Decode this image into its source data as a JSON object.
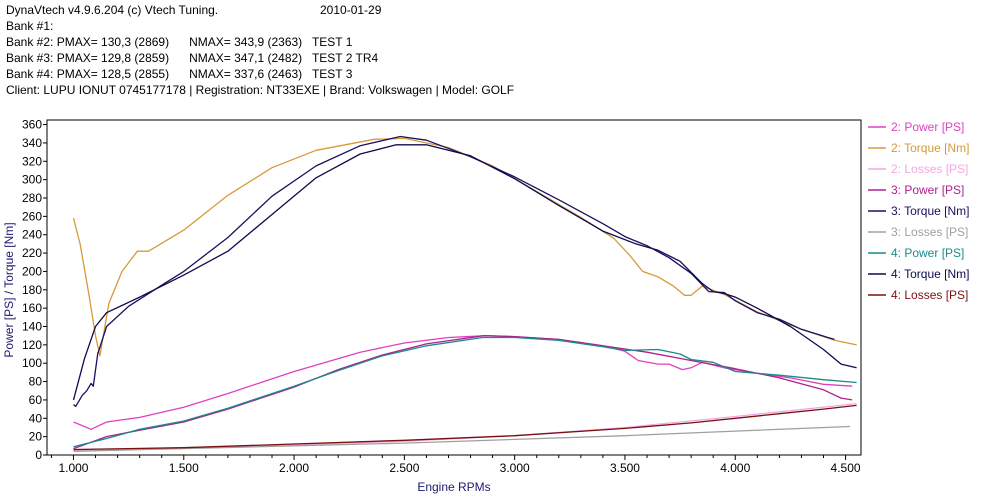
{
  "header": {
    "title": "DynaVtech v4.9.6.204 (c) Vtech Tuning.",
    "date": "2010-01-29",
    "banks": [
      "Bank #1:",
      "Bank #2: PMAX= 130,3 (2869)      NMAX= 343,9 (2363)   TEST 1",
      "Bank #3: PMAX= 129,8 (2859)      NMAX= 347,1 (2482)   TEST 2 TR4",
      "Bank #4: PMAX= 128,5 (2855)      NMAX= 337,6 (2463)   TEST 3"
    ],
    "client": "Client: LUPU IONUT 0745177178 | Registration: NT33EXE | Brand: Volkswagen | Model: GOLF"
  },
  "chart_data": {
    "type": "line",
    "xlabel": "Engine RPMs",
    "ylabel": "Power [PS] / Torque [Nm]",
    "xlim": [
      880,
      4570
    ],
    "ylim": [
      0,
      365
    ],
    "xticks": [
      1000,
      1500,
      2000,
      2500,
      3000,
      3500,
      4000,
      4500
    ],
    "xtick_labels": [
      "1.000",
      "1.500",
      "2.000",
      "2.500",
      "3.000",
      "3.500",
      "4.000",
      "4.500"
    ],
    "yticks": [
      0,
      20,
      40,
      60,
      80,
      100,
      120,
      140,
      160,
      180,
      200,
      220,
      240,
      260,
      280,
      300,
      320,
      340,
      360
    ],
    "grid": false,
    "legend_position": "right",
    "series": [
      {
        "name": "2: Power [PS]",
        "color": "#e040c0",
        "points": [
          [
            1000,
            36
          ],
          [
            1080,
            28
          ],
          [
            1150,
            36
          ],
          [
            1300,
            41
          ],
          [
            1500,
            52
          ],
          [
            1700,
            67
          ],
          [
            2000,
            91
          ],
          [
            2300,
            112
          ],
          [
            2500,
            122
          ],
          [
            2700,
            128
          ],
          [
            2869,
            130
          ],
          [
            3000,
            129
          ],
          [
            3200,
            126
          ],
          [
            3400,
            119
          ],
          [
            3500,
            113
          ],
          [
            3560,
            103
          ],
          [
            3650,
            99
          ],
          [
            3700,
            99
          ],
          [
            3760,
            93
          ],
          [
            3800,
            95
          ],
          [
            3850,
            101
          ],
          [
            3950,
            95
          ],
          [
            4100,
            89
          ],
          [
            4250,
            84
          ],
          [
            4400,
            77
          ],
          [
            4530,
            75
          ]
        ]
      },
      {
        "name": "2: Torque [Nm]",
        "color": "#d79a3a",
        "points": [
          [
            1000,
            258
          ],
          [
            1030,
            230
          ],
          [
            1070,
            175
          ],
          [
            1100,
            130
          ],
          [
            1120,
            108
          ],
          [
            1160,
            165
          ],
          [
            1220,
            200
          ],
          [
            1290,
            222
          ],
          [
            1340,
            222
          ],
          [
            1500,
            245
          ],
          [
            1700,
            283
          ],
          [
            1900,
            313
          ],
          [
            2100,
            332
          ],
          [
            2363,
            344
          ],
          [
            2500,
            345
          ],
          [
            2700,
            335
          ],
          [
            2900,
            315
          ],
          [
            3100,
            287
          ],
          [
            3300,
            259
          ],
          [
            3450,
            236
          ],
          [
            3520,
            218
          ],
          [
            3580,
            200
          ],
          [
            3650,
            194
          ],
          [
            3720,
            184
          ],
          [
            3770,
            174
          ],
          [
            3800,
            174
          ],
          [
            3850,
            184
          ],
          [
            3950,
            175
          ],
          [
            4100,
            156
          ],
          [
            4300,
            137
          ],
          [
            4450,
            125
          ],
          [
            4550,
            120
          ]
        ]
      },
      {
        "name": "2: Losses [PS]",
        "color": "#f4a6e4",
        "points": [
          [
            1000,
            5
          ],
          [
            1500,
            8
          ],
          [
            2000,
            11
          ],
          [
            2500,
            15
          ],
          [
            3000,
            21
          ],
          [
            3500,
            30
          ],
          [
            4000,
            42
          ],
          [
            4550,
            56
          ]
        ]
      },
      {
        "name": "3: Power [PS]",
        "color": "#b02090",
        "points": [
          [
            1000,
            7
          ],
          [
            1150,
            20
          ],
          [
            1300,
            27
          ],
          [
            1500,
            36
          ],
          [
            1700,
            50
          ],
          [
            2000,
            74
          ],
          [
            2200,
            93
          ],
          [
            2400,
            109
          ],
          [
            2600,
            121
          ],
          [
            2859,
            130
          ],
          [
            3000,
            129
          ],
          [
            3200,
            126
          ],
          [
            3400,
            119
          ],
          [
            3600,
            112
          ],
          [
            3800,
            103
          ],
          [
            4000,
            94
          ],
          [
            4200,
            84
          ],
          [
            4400,
            71
          ],
          [
            4480,
            62
          ],
          [
            4530,
            60
          ]
        ]
      },
      {
        "name": "3: Torque [Nm]",
        "color": "#1a1060",
        "points": [
          [
            1000,
            55
          ],
          [
            1010,
            53
          ],
          [
            1040,
            65
          ],
          [
            1060,
            70
          ],
          [
            1080,
            78
          ],
          [
            1090,
            75
          ],
          [
            1110,
            110
          ],
          [
            1150,
            140
          ],
          [
            1250,
            162
          ],
          [
            1400,
            185
          ],
          [
            1500,
            200
          ],
          [
            1700,
            237
          ],
          [
            1900,
            282
          ],
          [
            2100,
            315
          ],
          [
            2300,
            337
          ],
          [
            2482,
            347
          ],
          [
            2600,
            343
          ],
          [
            2800,
            325
          ],
          [
            3000,
            303
          ],
          [
            3200,
            278
          ],
          [
            3400,
            252
          ],
          [
            3500,
            238
          ],
          [
            3600,
            228
          ],
          [
            3700,
            215
          ],
          [
            3800,
            198
          ],
          [
            3880,
            178
          ],
          [
            3950,
            177
          ],
          [
            4000,
            168
          ],
          [
            4100,
            155
          ],
          [
            4200,
            148
          ],
          [
            4300,
            137
          ],
          [
            4420,
            128
          ],
          [
            4450,
            126
          ]
        ]
      },
      {
        "name": "3: Losses [PS]",
        "color": "#a0a0a0",
        "points": [
          [
            1000,
            4
          ],
          [
            1500,
            7
          ],
          [
            2000,
            10
          ],
          [
            2500,
            13
          ],
          [
            3000,
            17
          ],
          [
            3500,
            21
          ],
          [
            4000,
            26
          ],
          [
            4520,
            31
          ]
        ]
      },
      {
        "name": "4: Power [PS]",
        "color": "#1a8a8a",
        "points": [
          [
            1000,
            9
          ],
          [
            1150,
            18
          ],
          [
            1300,
            28
          ],
          [
            1500,
            37
          ],
          [
            1700,
            51
          ],
          [
            2000,
            75
          ],
          [
            2200,
            92
          ],
          [
            2400,
            108
          ],
          [
            2600,
            119
          ],
          [
            2855,
            128
          ],
          [
            3000,
            128
          ],
          [
            3200,
            125
          ],
          [
            3400,
            118
          ],
          [
            3500,
            114
          ],
          [
            3650,
            115
          ],
          [
            3750,
            110
          ],
          [
            3800,
            104
          ],
          [
            3900,
            101
          ],
          [
            4000,
            91
          ],
          [
            4200,
            87
          ],
          [
            4400,
            82
          ],
          [
            4550,
            79
          ]
        ]
      },
      {
        "name": "4: Torque [Nm]",
        "color": "#0c0c50",
        "points": [
          [
            1000,
            60
          ],
          [
            1050,
            105
          ],
          [
            1100,
            140
          ],
          [
            1150,
            155
          ],
          [
            1300,
            172
          ],
          [
            1500,
            196
          ],
          [
            1700,
            222
          ],
          [
            1900,
            262
          ],
          [
            2100,
            302
          ],
          [
            2300,
            328
          ],
          [
            2463,
            338
          ],
          [
            2600,
            338
          ],
          [
            2800,
            326
          ],
          [
            3000,
            301
          ],
          [
            3200,
            272
          ],
          [
            3400,
            244
          ],
          [
            3550,
            230
          ],
          [
            3650,
            223
          ],
          [
            3750,
            211
          ],
          [
            3850,
            187
          ],
          [
            3900,
            178
          ],
          [
            3950,
            176
          ],
          [
            4000,
            172
          ],
          [
            4100,
            160
          ],
          [
            4250,
            140
          ],
          [
            4400,
            115
          ],
          [
            4480,
            99
          ],
          [
            4550,
            95
          ]
        ]
      },
      {
        "name": "4: Losses [PS]",
        "color": "#7a1010",
        "points": [
          [
            1000,
            6
          ],
          [
            1500,
            8
          ],
          [
            2000,
            12
          ],
          [
            2500,
            16
          ],
          [
            3000,
            21
          ],
          [
            3500,
            29
          ],
          [
            3800,
            35
          ],
          [
            4000,
            40
          ],
          [
            4200,
            45
          ],
          [
            4400,
            50
          ],
          [
            4550,
            54
          ]
        ]
      }
    ]
  }
}
